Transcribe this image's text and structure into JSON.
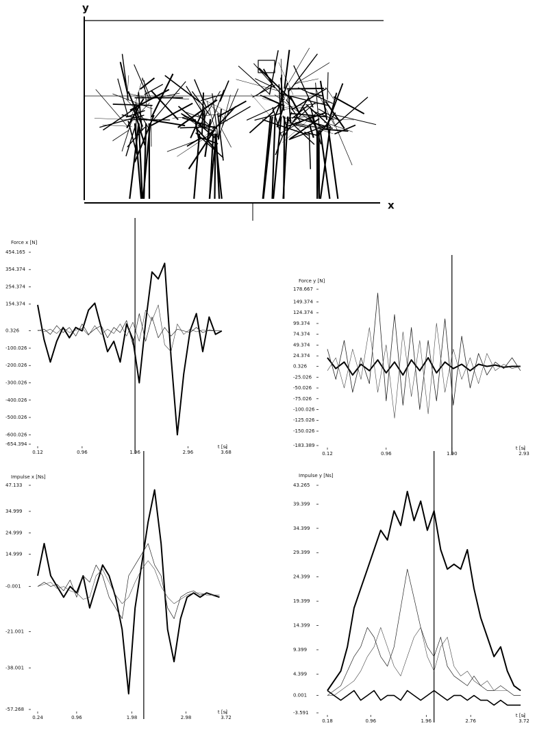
{
  "figure": {
    "y_label": "y",
    "x_label": "x"
  },
  "chart_data": [
    {
      "type": "line",
      "title": "Force x [N]",
      "xlabel": "t [s]",
      "x": [
        0.12,
        0.24,
        0.36,
        0.48,
        0.6,
        0.72,
        0.84,
        0.96,
        1.08,
        1.2,
        1.32,
        1.44,
        1.56,
        1.68,
        1.8,
        1.92,
        2.04,
        2.16,
        2.28,
        2.4,
        2.52,
        2.64,
        2.76,
        2.88,
        3.0,
        3.12,
        3.24,
        3.36,
        3.48,
        3.6
      ],
      "xlim": [
        0.12,
        3.68
      ],
      "xticks": [
        0.12,
        0.96,
        1.96,
        2.96,
        3.68
      ],
      "ylim": [
        -654.394,
        454.165
      ],
      "yticks": [
        454.165,
        354.374,
        254.374,
        154.374,
        0.326,
        -100.026,
        -200.026,
        -300.026,
        -400.026,
        -500.026,
        -600.026,
        -654.394
      ],
      "cursor": 1.96,
      "series": [
        {
          "color": "#000",
          "width": 2,
          "values": [
            150,
            -50,
            -180,
            -60,
            20,
            -40,
            20,
            0,
            120,
            160,
            20,
            -120,
            -60,
            -180,
            40,
            -50,
            -300,
            50,
            340,
            300,
            390,
            -150,
            -600,
            -250,
            0,
            100,
            -120,
            80,
            -20,
            0
          ]
        },
        {
          "color": "#222",
          "width": 0.7,
          "values": [
            0,
            10,
            -20,
            30,
            -10,
            20,
            -30,
            40,
            -20,
            10,
            30,
            -40,
            20,
            -10,
            60,
            -80,
            100,
            -60,
            80,
            -40,
            20,
            -30,
            10,
            0,
            -10,
            20,
            -10,
            5,
            0,
            0
          ]
        },
        {
          "color": "#333",
          "width": 0.6,
          "values": [
            5,
            -5,
            10,
            -15,
            20,
            -10,
            5,
            15,
            -25,
            30,
            -20,
            10,
            -15,
            40,
            -30,
            50,
            -60,
            120,
            60,
            150,
            -80,
            -120,
            40,
            -20,
            10,
            -5,
            5,
            0,
            0,
            0
          ]
        }
      ]
    },
    {
      "type": "line",
      "title": "Force y [N]",
      "xlabel": "t [s]",
      "x": [
        0.12,
        0.24,
        0.36,
        0.48,
        0.6,
        0.72,
        0.84,
        0.96,
        1.08,
        1.2,
        1.32,
        1.44,
        1.56,
        1.68,
        1.8,
        1.92,
        2.04,
        2.16,
        2.28,
        2.4,
        2.52,
        2.64,
        2.76,
        2.88
      ],
      "xlim": [
        0.12,
        2.93
      ],
      "xticks": [
        0.12,
        0.96,
        {
          "value": 1.9,
          "label": "1.90"
        },
        2.93
      ],
      "ylim": [
        -183.389,
        178.667
      ],
      "yticks": [
        178.667,
        149.374,
        124.374,
        99.374,
        74.374,
        49.374,
        24.374,
        0.326,
        -25.026,
        -50.026,
        -75.026,
        -100.026,
        -125.026,
        -150.026,
        -183.389
      ],
      "cursor": 1.9,
      "series": [
        {
          "color": "#000",
          "width": 2,
          "values": [
            20,
            -5,
            10,
            -20,
            5,
            -10,
            15,
            -15,
            10,
            -20,
            15,
            -10,
            20,
            -15,
            10,
            -5,
            5,
            -10,
            5,
            0,
            3,
            -2,
            0,
            0
          ]
        },
        {
          "color": "#222",
          "width": 0.8,
          "values": [
            40,
            -30,
            60,
            -60,
            20,
            -40,
            170,
            -80,
            120,
            -90,
            90,
            -100,
            60,
            -80,
            110,
            -90,
            70,
            -50,
            30,
            -20,
            10,
            -5,
            20,
            -10
          ]
        },
        {
          "color": "#444",
          "width": 0.6,
          "values": [
            -10,
            20,
            -50,
            40,
            -30,
            90,
            -60,
            50,
            -120,
            80,
            -70,
            60,
            -110,
            100,
            -60,
            40,
            -30,
            20,
            -40,
            30,
            -10,
            5,
            -5,
            0
          ]
        }
      ]
    },
    {
      "type": "line",
      "title": "Impulse x [Ns]",
      "xlabel": "t [s]",
      "x": [
        0.24,
        0.36,
        0.48,
        0.6,
        0.72,
        0.84,
        0.96,
        1.08,
        1.2,
        1.32,
        1.44,
        1.56,
        1.68,
        1.8,
        1.92,
        2.04,
        2.16,
        2.28,
        2.4,
        2.52,
        2.64,
        2.76,
        2.88,
        3.0,
        3.12,
        3.24,
        3.36,
        3.48,
        3.6
      ],
      "xlim": [
        0.24,
        3.72
      ],
      "xticks": [
        0.24,
        0.96,
        1.98,
        2.98,
        3.72
      ],
      "ylim": [
        -57.268,
        47.133
      ],
      "yticks": [
        47.133,
        34.999,
        24.999,
        14.999,
        -0.001,
        -21.001,
        -38.001,
        -57.268
      ],
      "cursor": 2.2,
      "series": [
        {
          "color": "#000",
          "width": 2,
          "values": [
            5,
            20,
            5,
            0,
            -5,
            0,
            -3,
            5,
            -10,
            0,
            10,
            5,
            -5,
            -20,
            -50,
            -10,
            10,
            30,
            45,
            20,
            -20,
            -35,
            -15,
            -5,
            -3,
            -5,
            -3,
            -4,
            -5
          ]
        },
        {
          "color": "#222",
          "width": 0.7,
          "values": [
            0,
            2,
            0,
            1,
            -2,
            3,
            -5,
            5,
            2,
            10,
            5,
            -5,
            -10,
            -15,
            5,
            10,
            15,
            20,
            10,
            5,
            -10,
            -15,
            -5,
            -3,
            -2,
            -4,
            -3,
            -4,
            -4
          ]
        },
        {
          "color": "#444",
          "width": 0.6,
          "values": [
            0,
            1,
            2,
            -1,
            0,
            -2,
            -3,
            -6,
            -5,
            5,
            8,
            2,
            -4,
            -8,
            -5,
            2,
            8,
            12,
            8,
            0,
            -5,
            -8,
            -6,
            -4,
            -3,
            -3,
            -4,
            -4,
            -4
          ]
        }
      ]
    },
    {
      "type": "line",
      "title": "Impulse y [Ns]",
      "xlabel": "t [s]",
      "x": [
        0.18,
        0.3,
        0.42,
        0.54,
        0.66,
        0.78,
        0.9,
        1.02,
        1.14,
        1.26,
        1.38,
        1.5,
        1.62,
        1.74,
        1.86,
        1.98,
        2.1,
        2.22,
        2.34,
        2.46,
        2.58,
        2.7,
        2.82,
        2.94,
        3.06,
        3.18,
        3.3,
        3.42,
        3.54,
        3.66
      ],
      "xlim": [
        0.18,
        3.72
      ],
      "xticks": [
        0.18,
        0.96,
        1.96,
        2.76,
        3.72
      ],
      "ylim": [
        -3.591,
        43.265
      ],
      "yticks": [
        43.265,
        39.399,
        34.399,
        29.399,
        24.399,
        19.399,
        14.399,
        9.399,
        4.399,
        0.001,
        -3.591
      ],
      "cursor": 2.1,
      "series": [
        {
          "color": "#000",
          "width": 2,
          "values": [
            1,
            3,
            5,
            10,
            18,
            22,
            26,
            30,
            34,
            32,
            38,
            35,
            42,
            36,
            40,
            34,
            38,
            30,
            26,
            27,
            26,
            30,
            22,
            16,
            12,
            8,
            10,
            5,
            2,
            1
          ]
        },
        {
          "color": "#222",
          "width": 0.7,
          "values": [
            0,
            1,
            2,
            5,
            8,
            10,
            14,
            12,
            8,
            6,
            10,
            18,
            26,
            20,
            14,
            10,
            8,
            12,
            6,
            4,
            3,
            2,
            4,
            2,
            1,
            1,
            2,
            1,
            0,
            0
          ]
        },
        {
          "color": "#444",
          "width": 0.6,
          "values": [
            0,
            0,
            1,
            2,
            3,
            5,
            8,
            10,
            14,
            10,
            6,
            4,
            8,
            12,
            14,
            8,
            5,
            10,
            12,
            6,
            4,
            5,
            3,
            2,
            3,
            1,
            1,
            1,
            0,
            0
          ]
        },
        {
          "color": "#000",
          "width": 1.6,
          "values": [
            1,
            0,
            -1,
            0,
            1,
            -1,
            0,
            1,
            -1,
            0,
            0,
            -1,
            1,
            0,
            -1,
            0,
            1,
            0,
            -1,
            0,
            0,
            -1,
            0,
            -1,
            -1,
            -2,
            -1,
            -2,
            -2,
            -2
          ]
        }
      ]
    }
  ]
}
